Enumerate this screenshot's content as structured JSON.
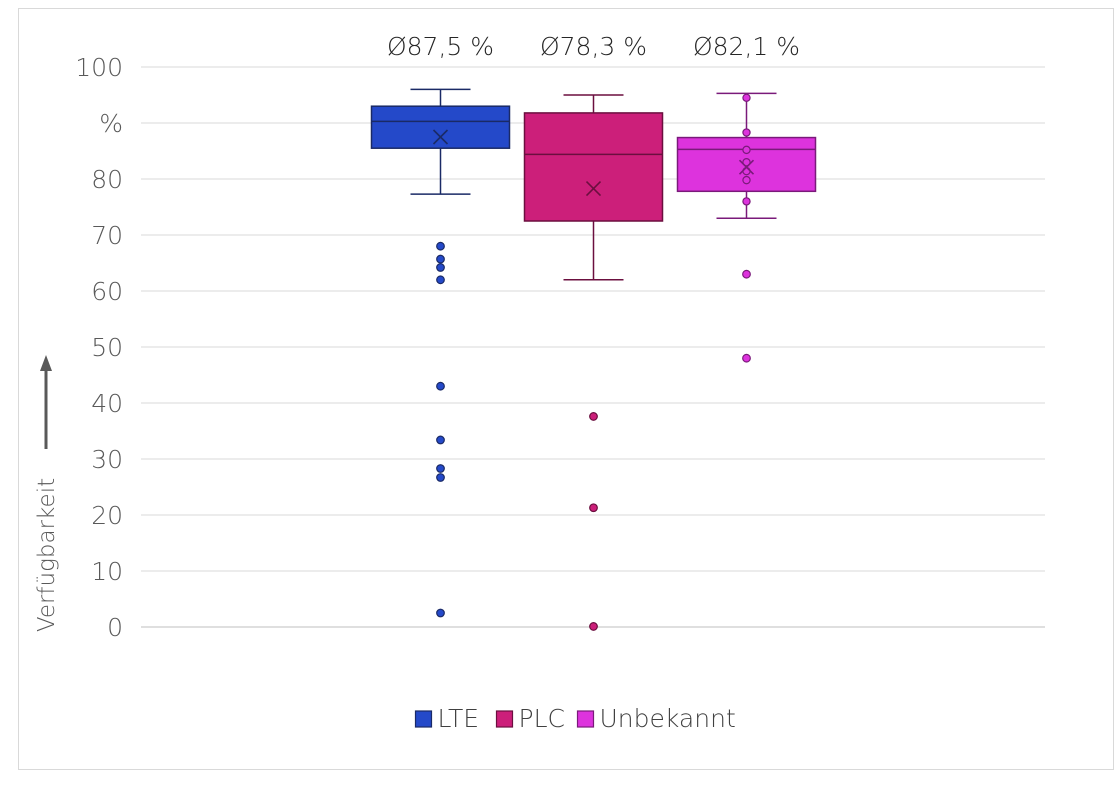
{
  "chart_data": {
    "type": "box",
    "ylabel": "Verfügbarkeit",
    "ylim": [
      0,
      100
    ],
    "y_ticks": [
      "0",
      "10",
      "20",
      "30",
      "40",
      "50",
      "60",
      "70",
      "80",
      "%",
      "100"
    ],
    "grid": true,
    "legend_position": "bottom",
    "series": [
      {
        "name": "LTE",
        "color": "#2449c9",
        "edge_color": "#1a2a66",
        "mean_label": "Ø87,5 %",
        "min": 77.3,
        "q1": 85.5,
        "median": 90.3,
        "q3": 93.0,
        "max": 96.0,
        "mean": 87.5,
        "outliers": [
          68.0,
          65.7,
          64.2,
          62.0,
          43.0,
          33.4,
          28.3,
          26.7,
          2.5
        ]
      },
      {
        "name": "PLC",
        "color": "#cc1f7a",
        "edge_color": "#6b0f3f",
        "mean_label": "Ø78,3 %",
        "min": 62.0,
        "q1": 72.5,
        "median": 84.4,
        "q3": 91.8,
        "max": 95.0,
        "mean": 78.3,
        "outliers": [
          37.6,
          21.3,
          0.1
        ]
      },
      {
        "name": "Unbekannt",
        "color": "#dd33dd",
        "edge_color": "#7a1a7a",
        "mean_label": "Ø82,1 %",
        "min": 73.0,
        "q1": 77.8,
        "median": 85.3,
        "q3": 87.4,
        "max": 95.3,
        "mean": 82.1,
        "inner_points": [
          94.5,
          88.3,
          85.2,
          83.0,
          81.4,
          79.8,
          76.0
        ],
        "outliers": [
          63.0,
          48.0
        ]
      }
    ]
  }
}
